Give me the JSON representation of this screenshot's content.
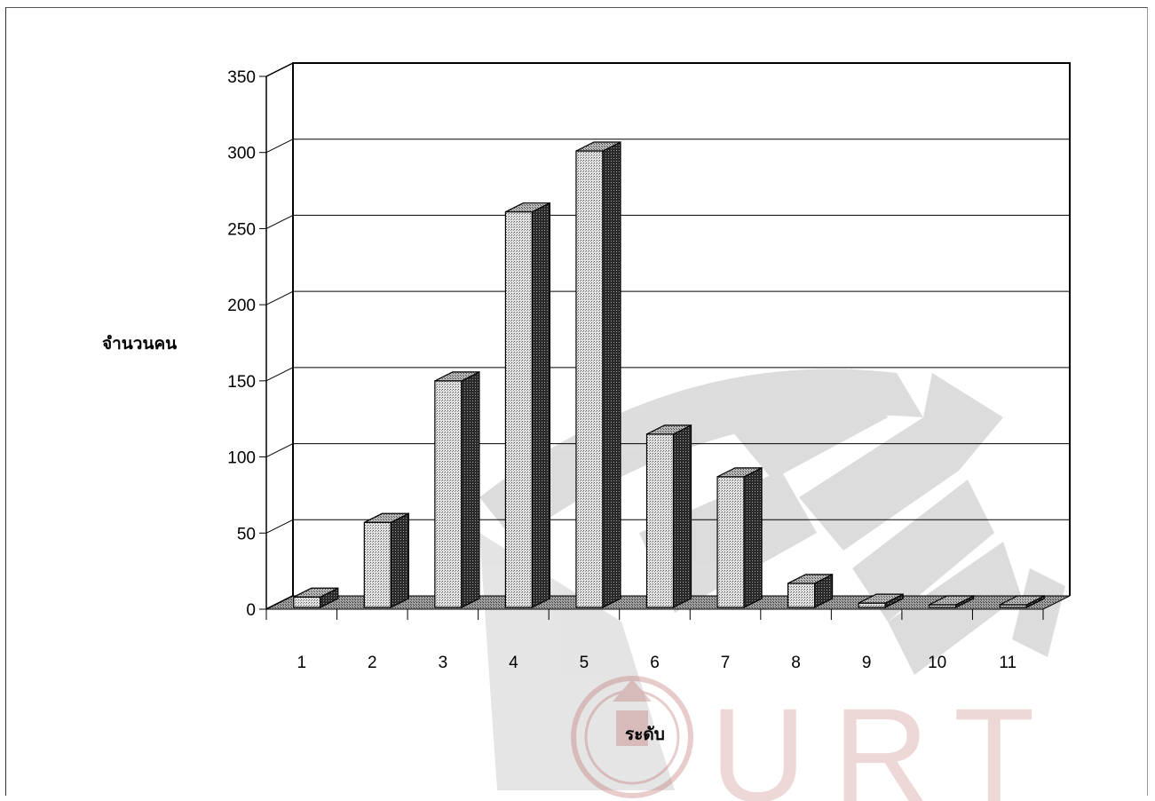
{
  "chart_data": {
    "type": "bar",
    "title": "",
    "xlabel": "ระดับ",
    "ylabel": "จำนวนคน",
    "categories": [
      "1",
      "2",
      "3",
      "4",
      "5",
      "6",
      "7",
      "8",
      "9",
      "10",
      "11"
    ],
    "values": [
      8,
      57,
      150,
      261,
      301,
      115,
      87,
      17,
      4,
      1,
      0
    ],
    "ylim": [
      0,
      350
    ],
    "yticks": [
      "0",
      "50",
      "100",
      "150",
      "200",
      "250",
      "300",
      "350"
    ],
    "grid": true,
    "legend": "none",
    "style": "3d-column"
  },
  "watermark": {
    "text": "URT",
    "color": "#c07070",
    "emblem": "thai-university-emblem"
  },
  "colors": {
    "bar_front": "#d2d2d2",
    "bar_side": "#3a3a3a",
    "bar_top": "#a8a8a8",
    "floor": "#8a8a8a"
  }
}
